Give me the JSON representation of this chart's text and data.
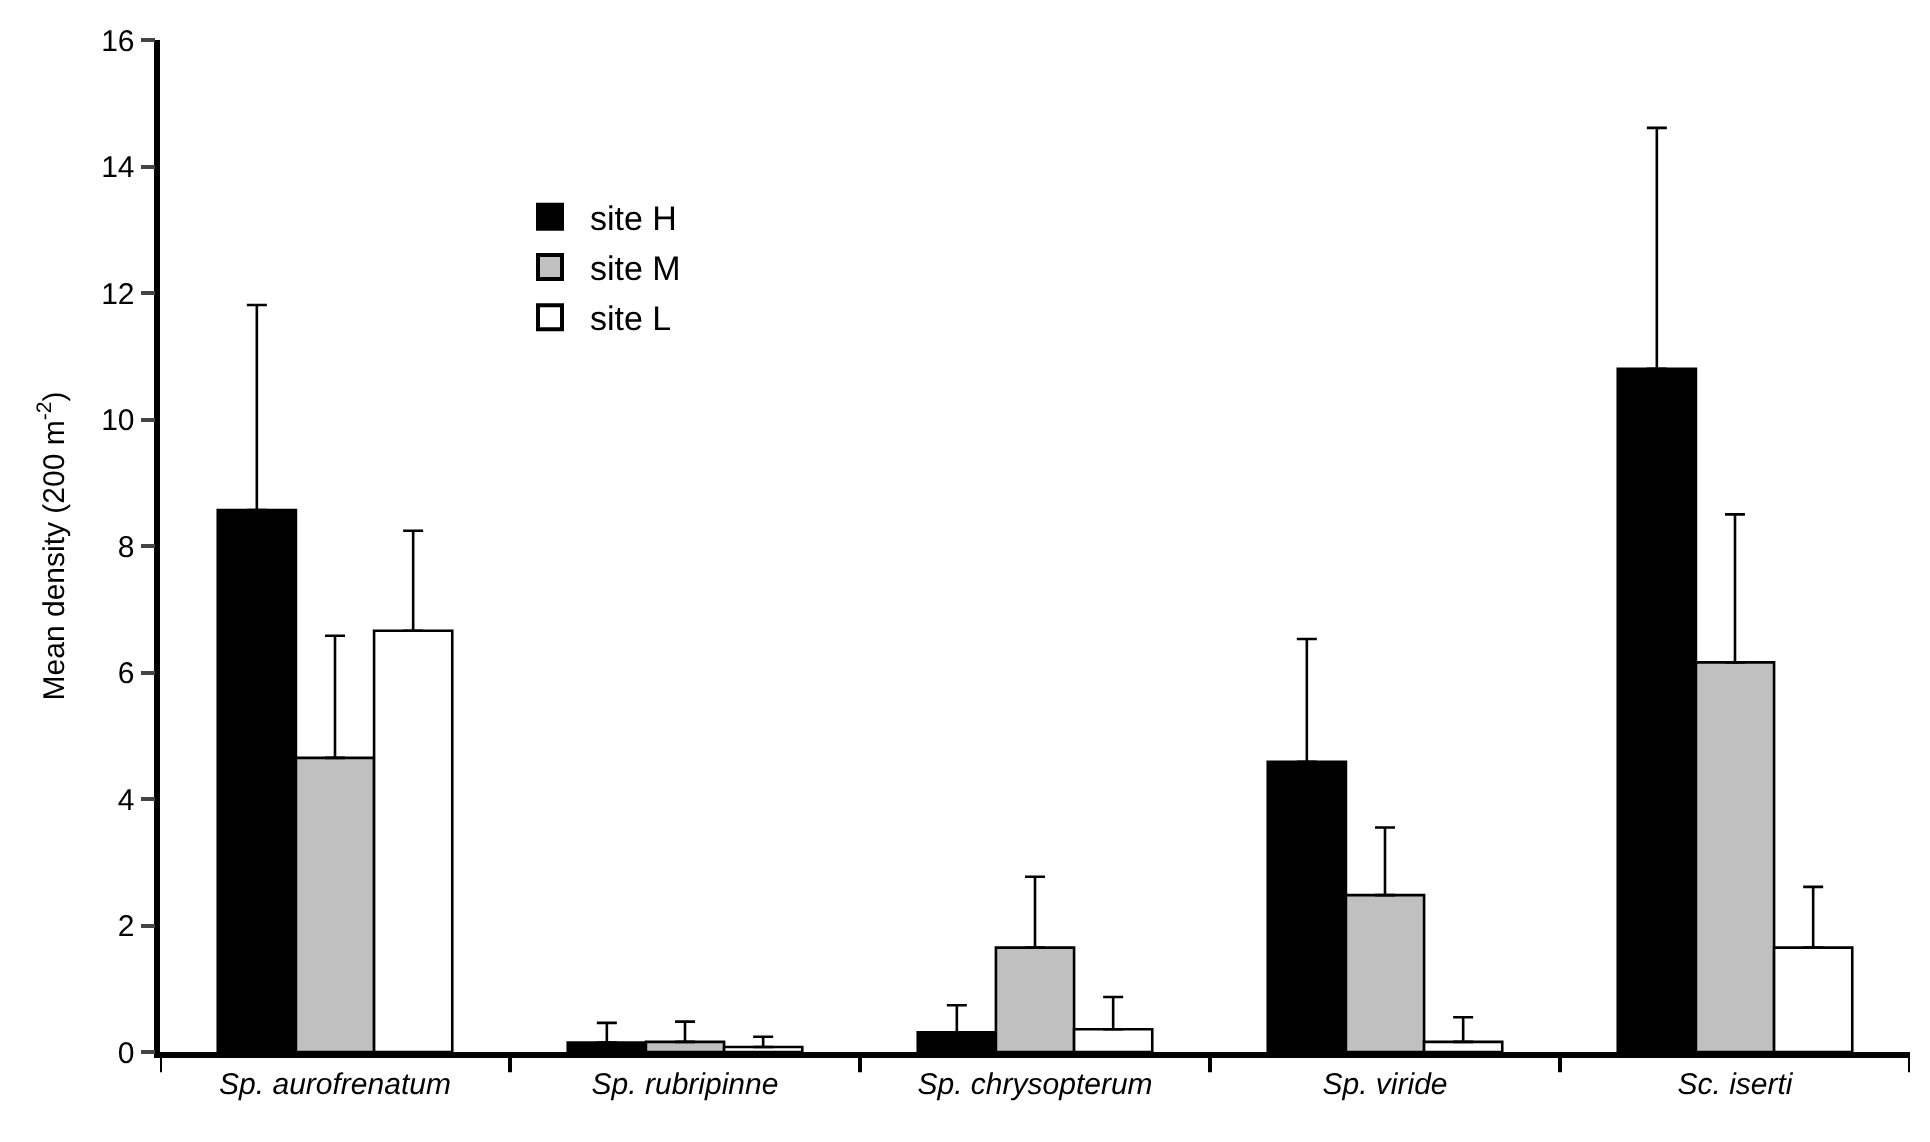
{
  "chart_data": {
    "type": "bar",
    "categories": [
      "Sp. aurofrenatum",
      "Sp. rubripinne",
      "Sp. chrysopterum",
      "Sp. viride",
      "Sc. iserti"
    ],
    "series": [
      {
        "name": "site H",
        "color": "#000000",
        "values": [
          8.57,
          0.15,
          0.31,
          4.59,
          10.8
        ],
        "errors": [
          [
            8.57,
            11.81
          ],
          [
            0.15,
            0.46
          ],
          [
            0.31,
            0.74
          ],
          [
            4.59,
            6.53
          ],
          [
            10.8,
            14.61
          ]
        ]
      },
      {
        "name": "site M",
        "color": "#c0c0c0",
        "values": [
          4.65,
          0.16,
          1.65,
          2.48,
          6.16
        ],
        "errors": [
          [
            4.65,
            6.58
          ],
          [
            0.16,
            0.48
          ],
          [
            1.65,
            2.77
          ],
          [
            2.48,
            3.55
          ],
          [
            6.16,
            8.5
          ]
        ]
      },
      {
        "name": "site L",
        "color": "#ffffff",
        "values": [
          6.66,
          0.08,
          0.36,
          0.16,
          1.65
        ],
        "errors": [
          [
            6.66,
            8.24
          ],
          [
            0.08,
            0.24
          ],
          [
            0.36,
            0.87
          ],
          [
            0.16,
            0.55
          ],
          [
            1.65,
            2.61
          ]
        ]
      }
    ],
    "ylabel": "Mean density (200 m$^{-2}$)",
    "ylim": [
      0,
      16
    ],
    "yticks": [
      0,
      2,
      4,
      6,
      8,
      10,
      12,
      14,
      16
    ],
    "legend": "top left"
  }
}
